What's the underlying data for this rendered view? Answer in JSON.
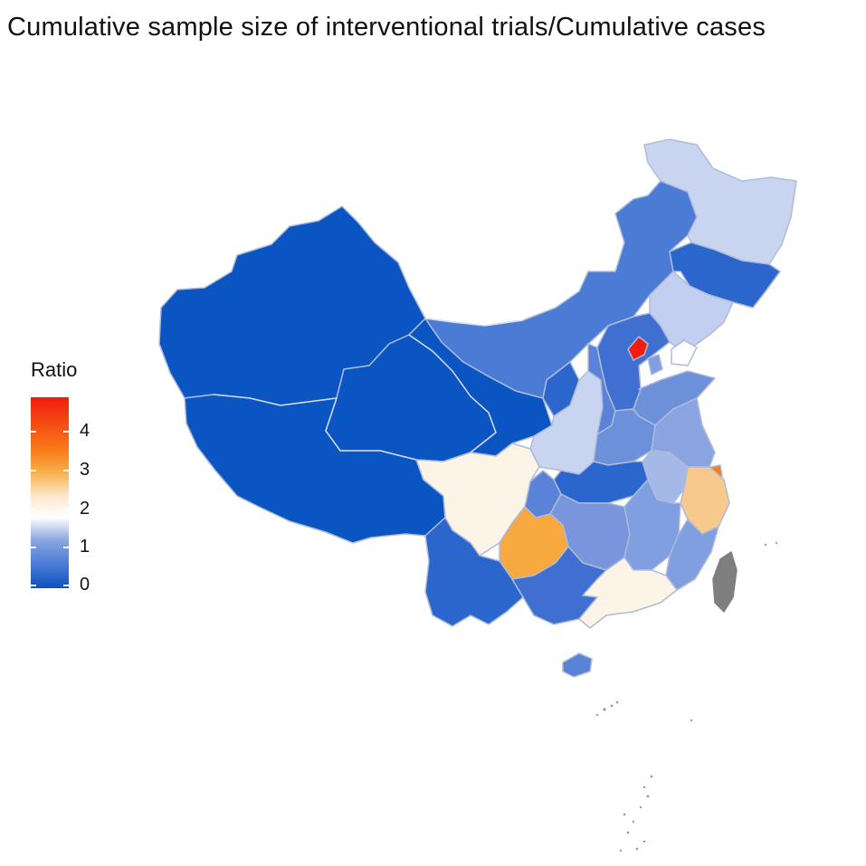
{
  "title": "Cumulative sample size of interventional trials/Cumulative cases",
  "legend": {
    "title": "Ratio",
    "ticks": [
      "0",
      "1",
      "2",
      "3",
      "4"
    ],
    "colors": [
      "#0a52bb",
      "#8aa4e0",
      "#ffffff",
      "#f9b24f",
      "#f11c0d"
    ]
  },
  "map": {
    "colors": {
      "deep_blue": "#0a55c2",
      "mid_blue": "#3f6fd0",
      "blue": "#5a82d6",
      "light_blue": "#7f9fe0",
      "pale_blue": "#c9d5f0",
      "cream": "#fdf4e8",
      "peach": "#f8c98c",
      "orange": "#f7a83e",
      "dark_orange": "#f77d1a",
      "red": "#f11c0d",
      "gray": "#808080",
      "border": "#b6c2df"
    }
  }
}
